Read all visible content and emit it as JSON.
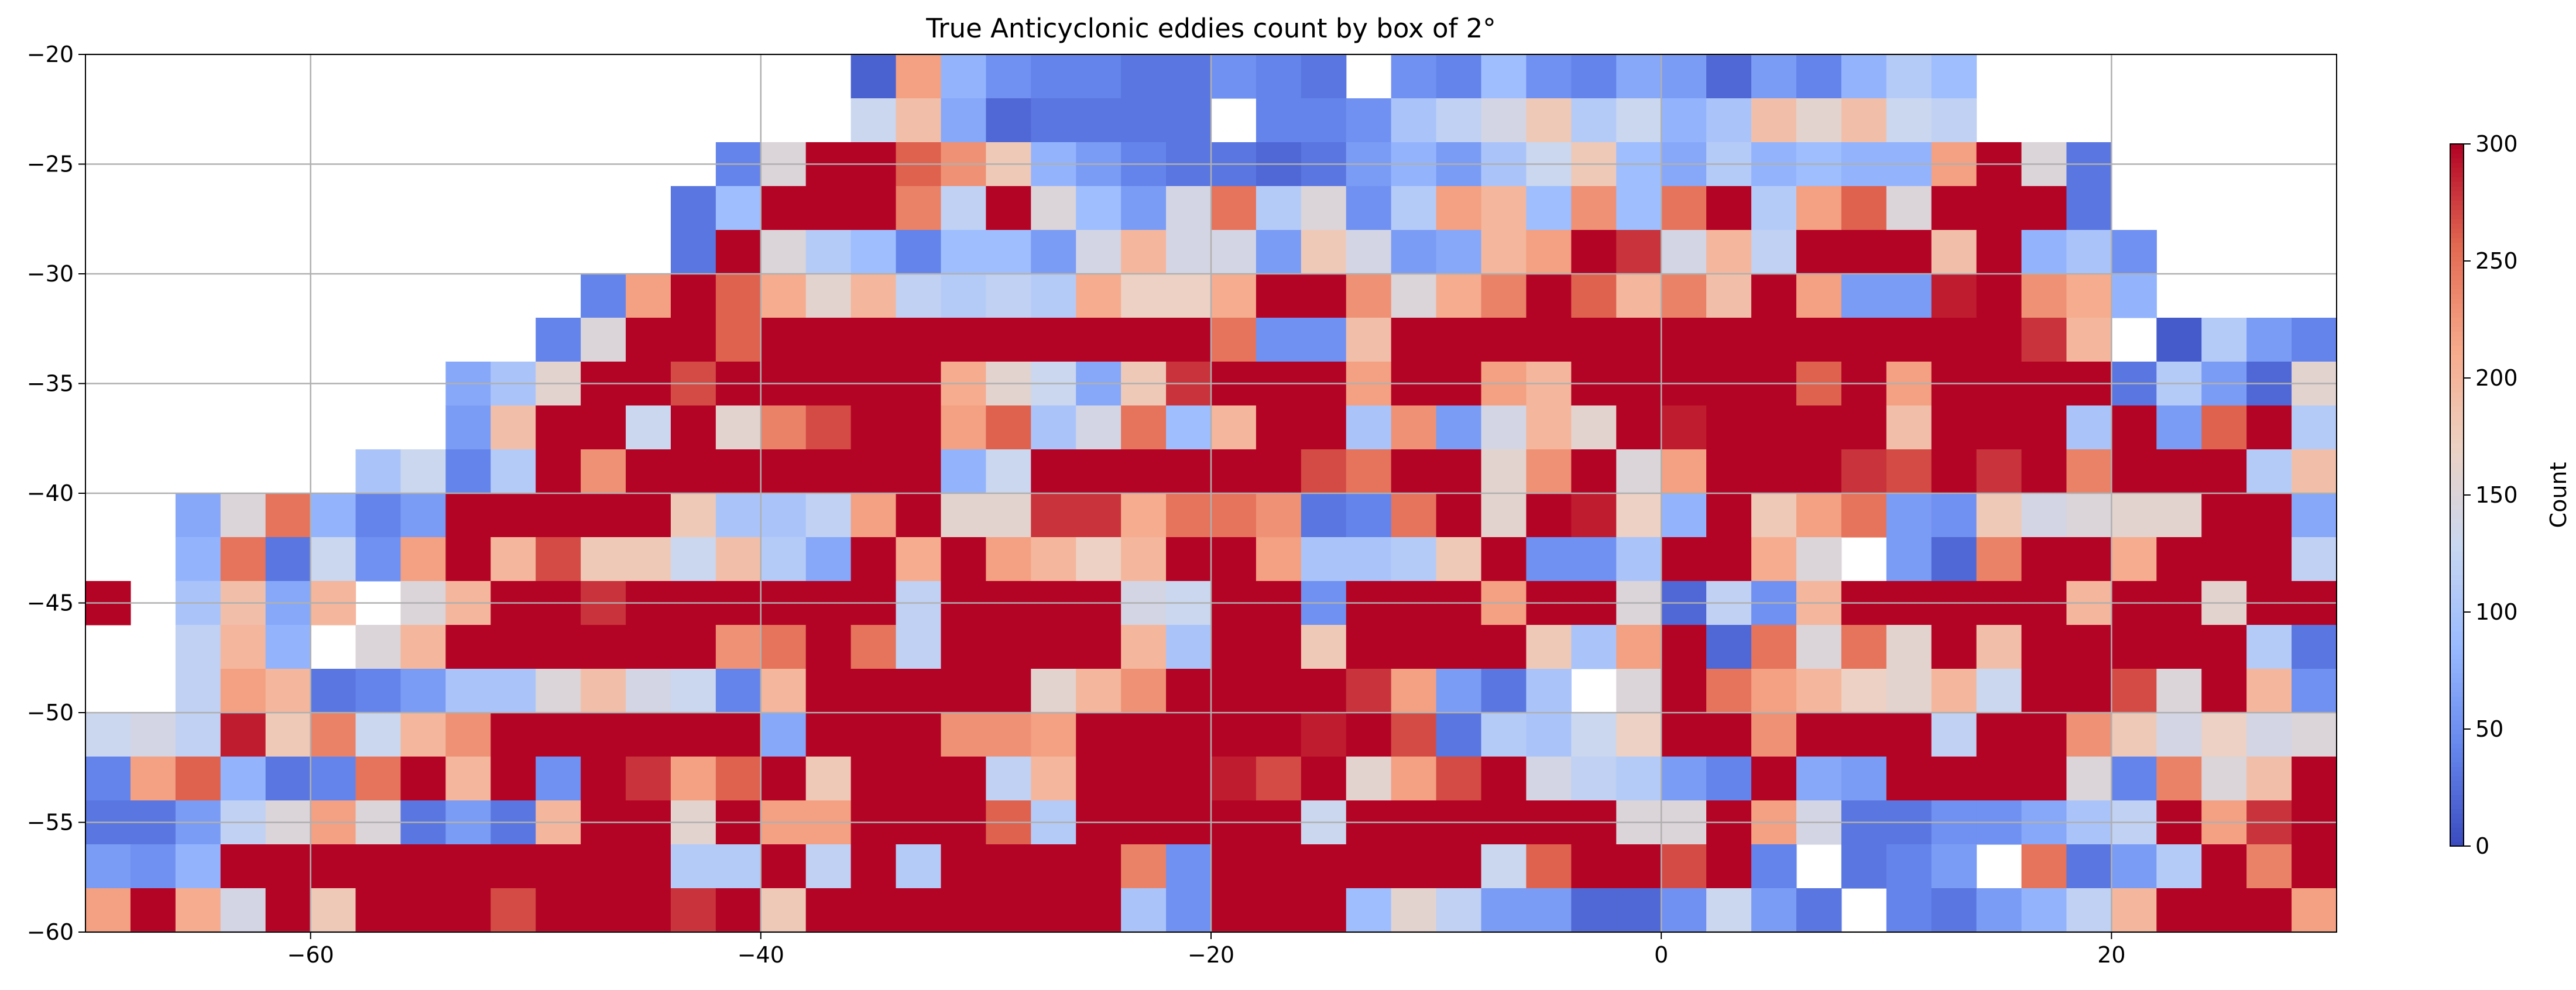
{
  "chart_data": {
    "type": "heatmap",
    "title": "True Anticyclonic eddies count by box of 2°",
    "xlabel": "",
    "ylabel": "",
    "xlim": [
      -70,
      30
    ],
    "ylim": [
      -60,
      -20
    ],
    "cell_size_deg": 2,
    "x_ticks": [
      -60,
      -40,
      -20,
      0,
      20
    ],
    "x_tick_labels": [
      "−60",
      "−40",
      "−20",
      "0",
      "20"
    ],
    "y_ticks": [
      -60,
      -55,
      -50,
      -45,
      -40,
      -35,
      -30,
      -25,
      -20
    ],
    "y_tick_labels": [
      "−60",
      "−55",
      "−50",
      "−45",
      "−40",
      "−35",
      "−30",
      "−25",
      "−20"
    ],
    "grid": true,
    "colormap": "coolwarm",
    "colormap_stops": [
      "#3b4cc0",
      "#6788ee",
      "#9abbff",
      "#c9d7f0",
      "#edd1c2",
      "#f7a889",
      "#e26952",
      "#b40426"
    ],
    "vmin": 0,
    "vmax": 300,
    "colorbar": {
      "label": "Count",
      "ticks": [
        0,
        50,
        100,
        150,
        200,
        250,
        300
      ],
      "tick_labels": [
        "0",
        "50",
        "100",
        "150",
        "200",
        "250",
        "300"
      ],
      "placement": "right"
    },
    "row_order": "top-to-bottom (lat -20 to -60), each row from lon -70 to 30; null = no data",
    "z": [
      [
        null,
        null,
        null,
        null,
        null,
        null,
        null,
        null,
        null,
        null,
        null,
        null,
        null,
        null,
        null,
        null,
        null,
        15,
        220,
        80,
        50,
        40,
        40,
        30,
        30,
        50,
        40,
        30,
        null,
        50,
        40,
        90,
        50,
        40,
        70,
        60,
        20,
        60,
        40,
        80,
        110,
        90,
        null,
        null,
        null,
        null,
        null,
        null,
        null,
        null
      ],
      [
        null,
        null,
        null,
        null,
        null,
        null,
        null,
        null,
        null,
        null,
        null,
        null,
        null,
        null,
        null,
        null,
        null,
        130,
        190,
        70,
        20,
        30,
        30,
        30,
        30,
        null,
        40,
        40,
        50,
        100,
        120,
        140,
        180,
        110,
        130,
        80,
        100,
        190,
        160,
        190,
        130,
        120,
        null,
        null,
        null,
        null,
        null,
        null,
        null,
        null
      ],
      [
        null,
        null,
        null,
        null,
        null,
        null,
        null,
        null,
        null,
        null,
        null,
        null,
        null,
        null,
        40,
        150,
        300,
        300,
        260,
        230,
        180,
        80,
        60,
        40,
        30,
        30,
        20,
        30,
        60,
        80,
        60,
        100,
        130,
        180,
        90,
        70,
        110,
        80,
        90,
        80,
        80,
        220,
        300,
        150,
        30,
        null,
        null,
        null,
        null,
        null
      ],
      [
        null,
        null,
        null,
        null,
        null,
        null,
        null,
        null,
        null,
        null,
        null,
        null,
        null,
        30,
        90,
        300,
        300,
        300,
        240,
        120,
        300,
        150,
        90,
        60,
        140,
        250,
        110,
        150,
        50,
        110,
        220,
        200,
        90,
        230,
        90,
        250,
        300,
        110,
        220,
        260,
        150,
        300,
        300,
        300,
        30,
        null,
        null,
        null,
        null,
        null
      ],
      [
        null,
        null,
        null,
        null,
        null,
        null,
        null,
        null,
        null,
        null,
        null,
        null,
        null,
        30,
        300,
        150,
        110,
        90,
        40,
        90,
        90,
        60,
        140,
        200,
        140,
        140,
        60,
        180,
        140,
        60,
        70,
        200,
        220,
        300,
        280,
        140,
        200,
        120,
        300,
        300,
        300,
        190,
        300,
        80,
        100,
        50,
        null,
        null,
        null,
        null
      ],
      [
        null,
        null,
        null,
        null,
        null,
        null,
        null,
        null,
        null,
        null,
        null,
        40,
        220,
        300,
        260,
        210,
        160,
        200,
        120,
        110,
        120,
        110,
        210,
        170,
        170,
        210,
        300,
        300,
        230,
        150,
        210,
        240,
        300,
        260,
        200,
        240,
        190,
        300,
        220,
        60,
        60,
        290,
        300,
        230,
        210,
        80,
        null,
        null,
        null,
        null
      ],
      [
        null,
        null,
        null,
        null,
        null,
        null,
        null,
        null,
        null,
        null,
        40,
        150,
        300,
        300,
        260,
        300,
        300,
        300,
        300,
        300,
        300,
        300,
        300,
        300,
        300,
        250,
        50,
        50,
        190,
        300,
        300,
        300,
        300,
        300,
        300,
        300,
        300,
        300,
        300,
        300,
        300,
        300,
        300,
        280,
        200,
        null,
        10,
        110,
        60,
        40
      ],
      [
        null,
        null,
        null,
        null,
        null,
        null,
        null,
        null,
        70,
        100,
        160,
        300,
        300,
        270,
        300,
        300,
        300,
        300,
        300,
        210,
        160,
        130,
        70,
        180,
        280,
        300,
        300,
        300,
        220,
        300,
        300,
        220,
        200,
        300,
        300,
        300,
        300,
        300,
        260,
        300,
        220,
        300,
        300,
        300,
        300,
        30,
        110,
        60,
        20,
        160
      ],
      [
        null,
        null,
        null,
        null,
        null,
        null,
        null,
        null,
        60,
        190,
        300,
        300,
        130,
        300,
        160,
        240,
        270,
        300,
        300,
        220,
        260,
        100,
        140,
        250,
        90,
        200,
        300,
        300,
        100,
        230,
        60,
        140,
        200,
        160,
        300,
        290,
        300,
        300,
        300,
        300,
        190,
        300,
        300,
        300,
        100,
        300,
        60,
        260,
        300,
        110
      ],
      [
        null,
        null,
        null,
        null,
        null,
        null,
        100,
        130,
        40,
        110,
        300,
        230,
        300,
        300,
        300,
        300,
        300,
        300,
        300,
        80,
        130,
        300,
        300,
        300,
        300,
        300,
        300,
        270,
        250,
        300,
        300,
        160,
        230,
        300,
        150,
        220,
        300,
        300,
        300,
        280,
        270,
        300,
        280,
        300,
        240,
        300,
        300,
        300,
        110,
        190
      ],
      [
        null,
        null,
        70,
        150,
        250,
        80,
        40,
        60,
        300,
        300,
        300,
        300,
        300,
        180,
        100,
        100,
        120,
        220,
        300,
        160,
        160,
        280,
        280,
        210,
        250,
        250,
        230,
        30,
        40,
        250,
        300,
        160,
        300,
        290,
        170,
        80,
        300,
        180,
        220,
        250,
        60,
        50,
        180,
        140,
        150,
        160,
        160,
        300,
        300,
        70
      ],
      [
        null,
        null,
        80,
        250,
        30,
        130,
        50,
        220,
        300,
        200,
        270,
        180,
        180,
        130,
        190,
        110,
        70,
        300,
        210,
        300,
        220,
        200,
        170,
        200,
        300,
        300,
        220,
        100,
        100,
        110,
        180,
        300,
        50,
        50,
        100,
        300,
        300,
        210,
        150,
        null,
        60,
        20,
        240,
        300,
        300,
        210,
        300,
        300,
        300,
        120
      ],
      [
        300,
        null,
        100,
        190,
        70,
        200,
        null,
        150,
        200,
        300,
        300,
        280,
        300,
        300,
        300,
        300,
        300,
        300,
        120,
        300,
        300,
        300,
        300,
        140,
        130,
        300,
        300,
        50,
        300,
        300,
        300,
        220,
        300,
        300,
        150,
        20,
        120,
        50,
        200,
        300,
        300,
        300,
        300,
        300,
        200,
        300,
        300,
        160,
        300,
        300
      ],
      [
        null,
        null,
        120,
        200,
        80,
        null,
        150,
        200,
        300,
        300,
        300,
        300,
        300,
        300,
        230,
        250,
        300,
        250,
        120,
        300,
        300,
        300,
        300,
        200,
        100,
        300,
        300,
        180,
        300,
        300,
        300,
        300,
        180,
        100,
        220,
        300,
        20,
        250,
        150,
        250,
        160,
        300,
        190,
        300,
        300,
        300,
        300,
        300,
        110,
        30
      ],
      [
        null,
        null,
        120,
        220,
        200,
        30,
        40,
        60,
        100,
        100,
        150,
        190,
        140,
        130,
        40,
        200,
        300,
        300,
        300,
        300,
        300,
        160,
        200,
        230,
        300,
        300,
        300,
        300,
        280,
        220,
        60,
        30,
        100,
        null,
        150,
        300,
        250,
        220,
        200,
        170,
        160,
        200,
        130,
        300,
        300,
        270,
        150,
        300,
        200,
        50
      ],
      [
        130,
        140,
        120,
        290,
        180,
        240,
        130,
        200,
        230,
        300,
        300,
        300,
        300,
        300,
        300,
        70,
        300,
        300,
        300,
        230,
        230,
        220,
        300,
        300,
        300,
        300,
        300,
        290,
        300,
        270,
        30,
        110,
        100,
        130,
        170,
        300,
        300,
        230,
        300,
        300,
        300,
        120,
        300,
        300,
        230,
        180,
        140,
        170,
        140,
        150
      ],
      [
        40,
        220,
        260,
        80,
        30,
        40,
        250,
        300,
        200,
        300,
        50,
        300,
        280,
        220,
        260,
        300,
        180,
        300,
        300,
        300,
        120,
        200,
        300,
        300,
        300,
        290,
        270,
        300,
        160,
        220,
        270,
        300,
        140,
        120,
        110,
        60,
        40,
        300,
        70,
        60,
        300,
        300,
        300,
        300,
        150,
        40,
        240,
        150,
        190,
        300
      ],
      [
        30,
        30,
        60,
        120,
        150,
        220,
        150,
        30,
        60,
        30,
        200,
        300,
        300,
        160,
        300,
        220,
        220,
        300,
        300,
        300,
        260,
        110,
        300,
        300,
        300,
        300,
        300,
        130,
        300,
        300,
        300,
        300,
        300,
        300,
        150,
        150,
        300,
        220,
        140,
        30,
        30,
        50,
        50,
        70,
        100,
        120,
        300,
        220,
        280,
        300
      ],
      [
        60,
        50,
        80,
        300,
        300,
        300,
        300,
        300,
        300,
        300,
        300,
        300,
        300,
        110,
        110,
        300,
        120,
        300,
        110,
        300,
        300,
        300,
        300,
        240,
        50,
        300,
        300,
        300,
        300,
        300,
        300,
        130,
        260,
        300,
        300,
        270,
        300,
        40,
        null,
        30,
        40,
        60,
        null,
        250,
        30,
        60,
        110,
        300,
        240,
        300
      ],
      [
        220,
        300,
        210,
        140,
        300,
        180,
        300,
        300,
        300,
        270,
        300,
        300,
        300,
        280,
        300,
        180,
        300,
        300,
        300,
        300,
        300,
        300,
        300,
        100,
        50,
        300,
        300,
        300,
        90,
        160,
        120,
        60,
        60,
        20,
        20,
        50,
        130,
        60,
        30,
        null,
        40,
        30,
        60,
        80,
        120,
        200,
        300,
        300,
        300,
        220
      ]
    ]
  }
}
